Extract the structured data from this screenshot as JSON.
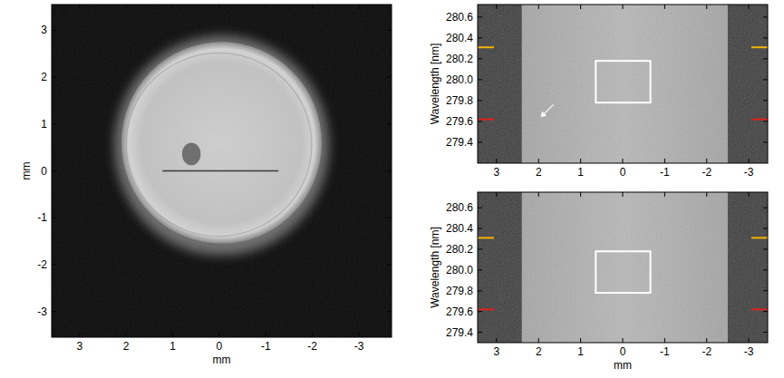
{
  "chart_data": [
    {
      "type": "image",
      "xlabel": "mm",
      "ylabel": "mm",
      "xlim": [
        3.6,
        -3.7
      ],
      "ylim": [
        -3.55,
        3.55
      ],
      "xticks": [
        3,
        2,
        1,
        0,
        -1,
        -2,
        -3
      ],
      "yticks": [
        -3,
        -2,
        -1,
        0,
        1,
        2,
        3
      ],
      "disk": {
        "center_x": -0.05,
        "center_y": 0.6,
        "radius": 2.15
      },
      "spot": {
        "x": 0.6,
        "y": 0.36,
        "radius": 0.2
      },
      "line": {
        "x": [
          1.22,
          -1.27
        ],
        "y": 0
      }
    },
    {
      "type": "image",
      "ylabel": "Wavelength [nm]",
      "xlim": [
        3.45,
        -3.45
      ],
      "ylim": [
        279.2,
        280.72
      ],
      "xticks": [
        3,
        2,
        1,
        0,
        -1,
        -2,
        -3
      ],
      "yticks": [
        279.4,
        279.6,
        279.8,
        {
          "value": 280,
          "label": "280.0"
        },
        280.2,
        280.4,
        280.6
      ],
      "bright_region": [
        2.4,
        -2.5
      ],
      "box": {
        "x": [
          0.64,
          -0.66
        ],
        "y": [
          279.78,
          280.18
        ]
      },
      "marker_lines": [
        {
          "value": 280.31,
          "color": "#f0b400"
        },
        {
          "value": 279.62,
          "color": "#e0201a"
        }
      ],
      "arrow": {
        "x": 1.95,
        "y": 279.64
      }
    },
    {
      "type": "image",
      "xlabel": "mm",
      "ylabel": "Wavelength [nm]",
      "xlim": [
        3.45,
        -3.45
      ],
      "ylim": [
        279.3,
        280.75
      ],
      "xticks": [
        3,
        2,
        1,
        0,
        -1,
        -2,
        -3
      ],
      "yticks": [
        279.4,
        279.6,
        279.8,
        {
          "value": 280,
          "label": "280.0"
        },
        280.2,
        280.4,
        280.6
      ],
      "bright_region": [
        2.4,
        -2.5
      ],
      "box": {
        "x": [
          0.64,
          -0.66
        ],
        "y": [
          279.78,
          280.18
        ]
      },
      "marker_lines": [
        {
          "value": 280.31,
          "color": "#f0b400"
        },
        {
          "value": 279.62,
          "color": "#e0201a"
        }
      ]
    }
  ]
}
